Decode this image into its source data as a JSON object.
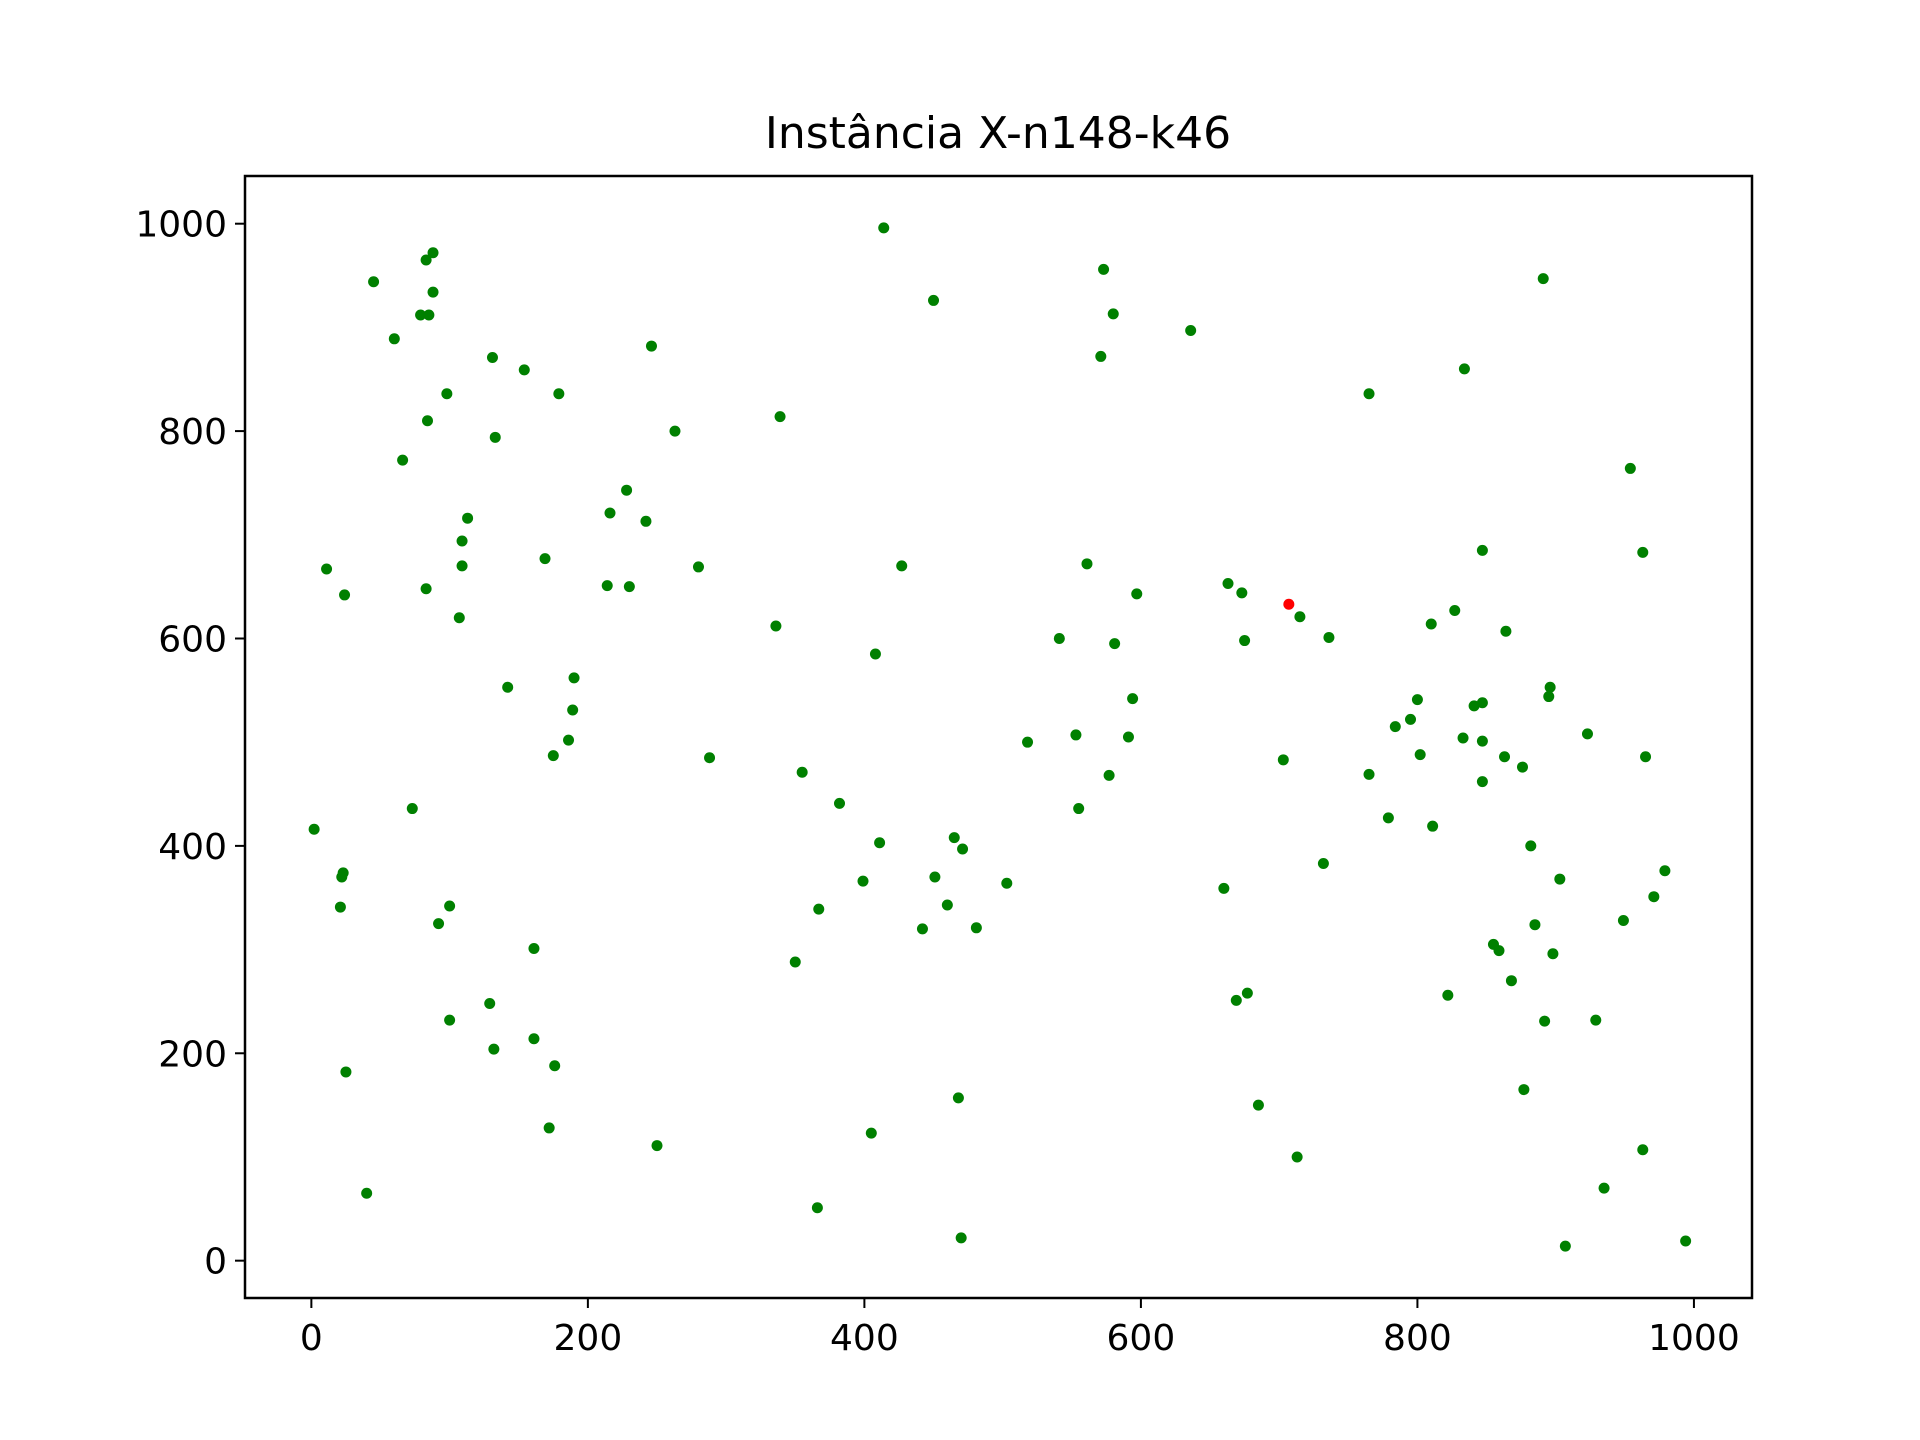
{
  "chart_data": {
    "type": "scatter",
    "title": "Instância X-n148-k46",
    "xlabel": "",
    "ylabel": "",
    "xlim": [
      -48,
      1042
    ],
    "ylim": [
      -36,
      1046
    ],
    "xticks": [
      0,
      200,
      400,
      600,
      800,
      1000
    ],
    "yticks": [
      0,
      200,
      400,
      600,
      800,
      1000
    ],
    "grid": false,
    "colors": {
      "customer": "#008000",
      "depot": "#ff0000"
    },
    "depot": {
      "x": 707,
      "y": 633
    },
    "customers": [
      [
        2,
        416
      ],
      [
        11,
        667
      ],
      [
        24,
        642
      ],
      [
        21,
        341
      ],
      [
        22,
        370
      ],
      [
        23,
        374
      ],
      [
        25,
        182
      ],
      [
        40,
        65
      ],
      [
        45,
        944
      ],
      [
        60,
        889
      ],
      [
        66,
        772
      ],
      [
        73,
        436
      ],
      [
        79,
        912
      ],
      [
        83,
        648
      ],
      [
        84,
        810
      ],
      [
        83,
        965
      ],
      [
        85,
        912
      ],
      [
        88,
        934
      ],
      [
        88,
        972
      ],
      [
        92,
        325
      ],
      [
        98,
        836
      ],
      [
        100,
        342
      ],
      [
        100,
        232
      ],
      [
        107,
        620
      ],
      [
        109,
        694
      ],
      [
        109,
        670
      ],
      [
        113,
        716
      ],
      [
        129,
        248
      ],
      [
        131,
        871
      ],
      [
        132,
        204
      ],
      [
        133,
        794
      ],
      [
        142,
        553
      ],
      [
        154,
        859
      ],
      [
        161,
        301
      ],
      [
        161,
        214
      ],
      [
        169,
        677
      ],
      [
        172,
        128
      ],
      [
        175,
        487
      ],
      [
        176,
        188
      ],
      [
        179,
        836
      ],
      [
        186,
        502
      ],
      [
        189,
        531
      ],
      [
        190,
        562
      ],
      [
        214,
        651
      ],
      [
        216,
        721
      ],
      [
        228,
        743
      ],
      [
        230,
        650
      ],
      [
        242,
        713
      ],
      [
        246,
        882
      ],
      [
        250,
        111
      ],
      [
        263,
        800
      ],
      [
        280,
        669
      ],
      [
        288,
        485
      ],
      [
        336,
        612
      ],
      [
        339,
        814
      ],
      [
        350,
        288
      ],
      [
        355,
        471
      ],
      [
        366,
        51
      ],
      [
        367,
        339
      ],
      [
        382,
        441
      ],
      [
        399,
        366
      ],
      [
        405,
        123
      ],
      [
        408,
        585
      ],
      [
        411,
        403
      ],
      [
        414,
        996
      ],
      [
        427,
        670
      ],
      [
        442,
        320
      ],
      [
        450,
        926
      ],
      [
        451,
        370
      ],
      [
        460,
        343
      ],
      [
        465,
        408
      ],
      [
        468,
        157
      ],
      [
        470,
        22
      ],
      [
        471,
        397
      ],
      [
        481,
        321
      ],
      [
        503,
        364
      ],
      [
        518,
        500
      ],
      [
        541,
        600
      ],
      [
        553,
        507
      ],
      [
        555,
        436
      ],
      [
        561,
        672
      ],
      [
        571,
        872
      ],
      [
        573,
        956
      ],
      [
        577,
        468
      ],
      [
        580,
        913
      ],
      [
        581,
        595
      ],
      [
        591,
        505
      ],
      [
        594,
        542
      ],
      [
        597,
        643
      ],
      [
        636,
        897
      ],
      [
        660,
        359
      ],
      [
        663,
        653
      ],
      [
        669,
        251
      ],
      [
        673,
        644
      ],
      [
        675,
        598
      ],
      [
        677,
        258
      ],
      [
        685,
        150
      ],
      [
        703,
        483
      ],
      [
        713,
        100
      ],
      [
        715,
        621
      ],
      [
        732,
        383
      ],
      [
        736,
        601
      ],
      [
        765,
        469
      ],
      [
        765,
        836
      ],
      [
        779,
        427
      ],
      [
        784,
        515
      ],
      [
        795,
        522
      ],
      [
        800,
        541
      ],
      [
        802,
        488
      ],
      [
        810,
        614
      ],
      [
        811,
        419
      ],
      [
        822,
        256
      ],
      [
        827,
        627
      ],
      [
        833,
        504
      ],
      [
        834,
        860
      ],
      [
        841,
        535
      ],
      [
        847,
        685
      ],
      [
        847,
        501
      ],
      [
        847,
        462
      ],
      [
        847,
        538
      ],
      [
        855,
        305
      ],
      [
        859,
        299
      ],
      [
        863,
        486
      ],
      [
        864,
        607
      ],
      [
        868,
        270
      ],
      [
        876,
        476
      ],
      [
        877,
        165
      ],
      [
        882,
        400
      ],
      [
        885,
        324
      ],
      [
        891,
        947
      ],
      [
        892,
        231
      ],
      [
        895,
        544
      ],
      [
        896,
        553
      ],
      [
        898,
        296
      ],
      [
        903,
        368
      ],
      [
        907,
        14
      ],
      [
        923,
        508
      ],
      [
        929,
        232
      ],
      [
        935,
        70
      ],
      [
        949,
        328
      ],
      [
        954,
        764
      ],
      [
        963,
        683
      ],
      [
        963,
        107
      ],
      [
        965,
        486
      ],
      [
        971,
        351
      ],
      [
        979,
        376
      ],
      [
        994,
        19
      ]
    ]
  }
}
